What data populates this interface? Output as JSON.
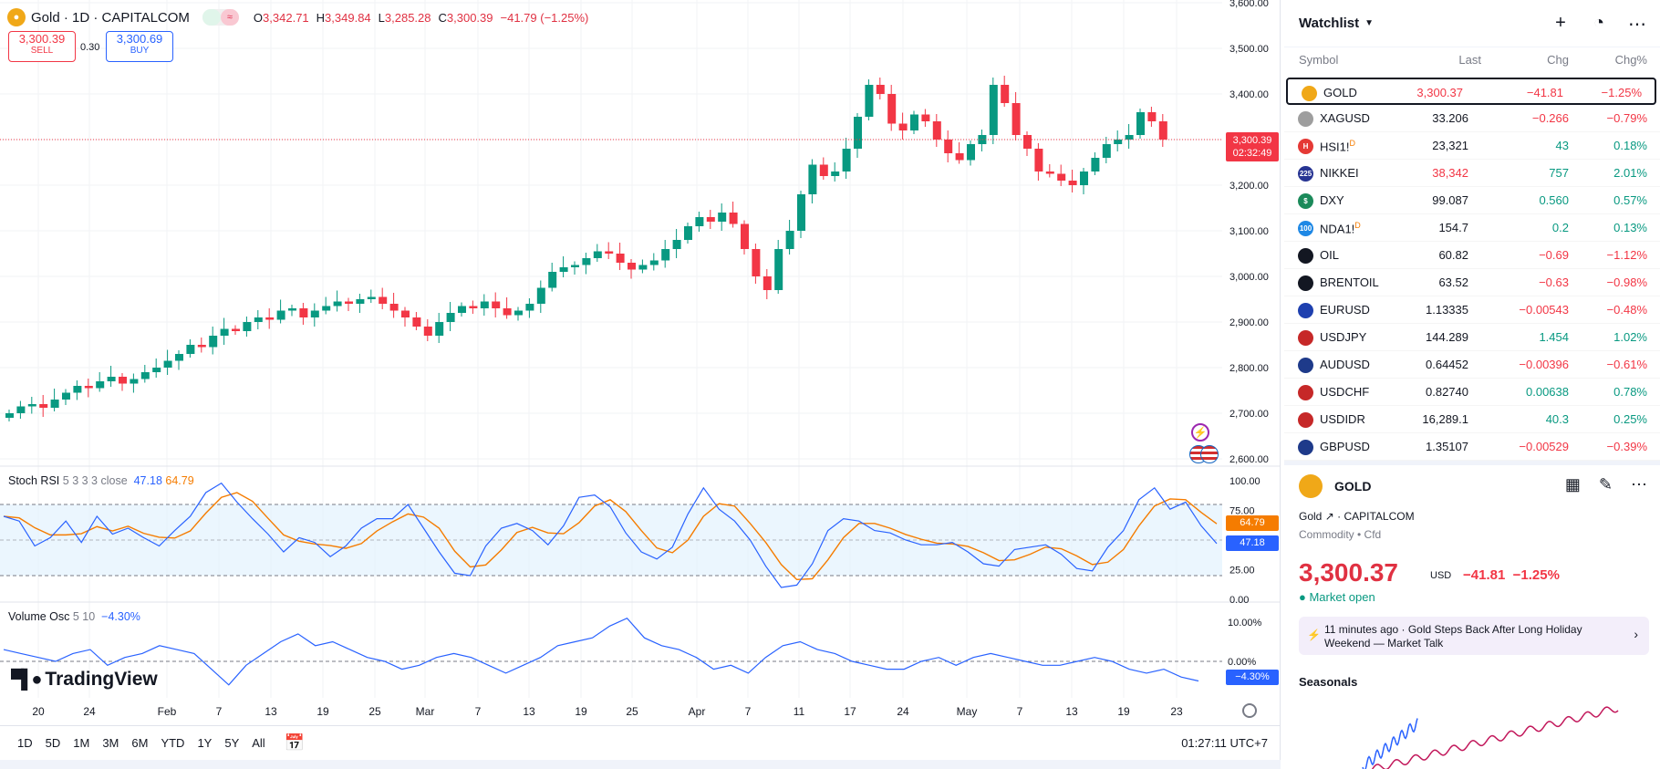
{
  "header": {
    "symbol_title": "Gold · 1D · CAPITALCOM",
    "open_label": "O",
    "open": "3,342.71",
    "high_label": "H",
    "high": "3,349.84",
    "low_label": "L",
    "low": "3,285.28",
    "close_label": "C",
    "close": "3,300.39",
    "change": "−41.79 (−1.25%)",
    "badge_glyph": "≈"
  },
  "trade": {
    "sell_price": "3,300.39",
    "sell_label": "SELL",
    "spread": "0.30",
    "buy_price": "3,300.69",
    "buy_label": "BUY"
  },
  "price_axis": [
    "3,600.00",
    "3,500.00",
    "3,400.00",
    "3,300.00",
    "3,200.00",
    "3,100.00",
    "3,000.00",
    "2,900.00",
    "2,800.00",
    "2,700.00",
    "2,600.00"
  ],
  "last_price_tag": {
    "price": "3,300.39",
    "countdown": "02:32:49"
  },
  "stoch_rsi": {
    "label": "Stoch RSI",
    "params": "5 3 3 3 close",
    "k": "47.18",
    "d": "64.79",
    "axis": [
      "100.00",
      "75.00",
      "50.00",
      "25.00",
      "0.00"
    ]
  },
  "volume_osc": {
    "label": "Volume Osc",
    "params": "5 10",
    "value": "−4.30%",
    "axis": [
      "10.00%",
      "0.00%"
    ]
  },
  "time_axis": [
    "20",
    "24",
    "Feb",
    "7",
    "13",
    "19",
    "25",
    "Mar",
    "7",
    "13",
    "19",
    "25",
    "Apr",
    "7",
    "11",
    "17",
    "24",
    "May",
    "7",
    "13",
    "19",
    "23"
  ],
  "bottom_bar": {
    "ranges": [
      "1D",
      "5D",
      "1M",
      "3M",
      "6M",
      "YTD",
      "1Y",
      "5Y",
      "All"
    ],
    "clock": "01:27:11 UTC+7"
  },
  "brand": "TradingView",
  "colors": {
    "up": "#089981",
    "down": "#f23645",
    "k_line": "#2962ff",
    "d_line": "#f57c00"
  },
  "watchlist": {
    "title": "Watchlist",
    "columns": [
      "Symbol",
      "Last",
      "Chg",
      "Chg%"
    ],
    "rows": [
      {
        "symbol": "GOLD",
        "last": "3,300.37",
        "chg": "−41.81",
        "chgp": "−1.25%",
        "dir": "down",
        "icon_color": "#f0a818",
        "icon_text": "",
        "selected": true
      },
      {
        "symbol": "XAGUSD",
        "last": "33.206",
        "chg": "−0.266",
        "chgp": "−0.79%",
        "dir": "down",
        "icon_color": "#9e9e9e",
        "icon_text": "",
        "selected": false
      },
      {
        "symbol": "HSI1!",
        "sup": "D",
        "last": "23,321",
        "chg": "43",
        "chgp": "0.18%",
        "dir": "up",
        "icon_color": "#e53935",
        "icon_text": "H",
        "selected": false
      },
      {
        "symbol": "NIKKEI",
        "last": "38,342",
        "chg": "757",
        "chgp": "2.01%",
        "dir": "up",
        "icon_color": "#283593",
        "icon_text": "225",
        "selected": false
      },
      {
        "symbol": "DXY",
        "last": "99.087",
        "chg": "0.560",
        "chgp": "0.57%",
        "dir": "up",
        "icon_color": "#1b8a5a",
        "icon_text": "$",
        "selected": false
      },
      {
        "symbol": "NDA1!",
        "sup": "D",
        "last": "154.7",
        "chg": "0.2",
        "chgp": "0.13%",
        "dir": "up",
        "icon_color": "#1e88e5",
        "icon_text": "100",
        "selected": false
      },
      {
        "symbol": "OIL",
        "last": "60.82",
        "chg": "−0.69",
        "chgp": "−1.12%",
        "dir": "down",
        "icon_color": "#131722",
        "icon_text": "",
        "selected": false
      },
      {
        "symbol": "BRENTOIL",
        "last": "63.52",
        "chg": "−0.63",
        "chgp": "−0.98%",
        "dir": "down",
        "icon_color": "#131722",
        "icon_text": "",
        "selected": false
      },
      {
        "symbol": "EURUSD",
        "last": "1.13335",
        "chg": "−0.00543",
        "chgp": "−0.48%",
        "dir": "down",
        "icon_color": "#1e40af",
        "icon_text": "",
        "selected": false
      },
      {
        "symbol": "USDJPY",
        "last": "144.289",
        "chg": "1.454",
        "chgp": "1.02%",
        "dir": "up",
        "icon_color": "#c62828",
        "icon_text": "",
        "selected": false
      },
      {
        "symbol": "AUDUSD",
        "last": "0.64452",
        "chg": "−0.00396",
        "chgp": "−0.61%",
        "dir": "down",
        "icon_color": "#1e3a8a",
        "icon_text": "",
        "selected": false
      },
      {
        "symbol": "USDCHF",
        "last": "0.82740",
        "chg": "0.00638",
        "chgp": "0.78%",
        "dir": "up",
        "icon_color": "#c62828",
        "icon_text": "",
        "selected": false
      },
      {
        "symbol": "USDIDR",
        "last": "16,289.1",
        "chg": "40.3",
        "chgp": "0.25%",
        "dir": "up",
        "icon_color": "#c62828",
        "icon_text": "",
        "selected": false
      },
      {
        "symbol": "GBPUSD",
        "last": "1.35107",
        "chg": "−0.00529",
        "chgp": "−0.39%",
        "dir": "down",
        "icon_color": "#1e3a8a",
        "icon_text": "",
        "selected": false
      }
    ]
  },
  "detail": {
    "symbol": "GOLD",
    "name": "Gold",
    "exchange": "· CAPITALCOM",
    "category": "Commodity • Cfd",
    "price": "3,300.37",
    "currency": "USD",
    "change": "−41.81",
    "change_pct": "−1.25%",
    "market_status": "● Market open",
    "news": "11 minutes ago · Gold Steps Back After Long Holiday Weekend — Market Talk",
    "seasonals_title": "Seasonals"
  }
}
